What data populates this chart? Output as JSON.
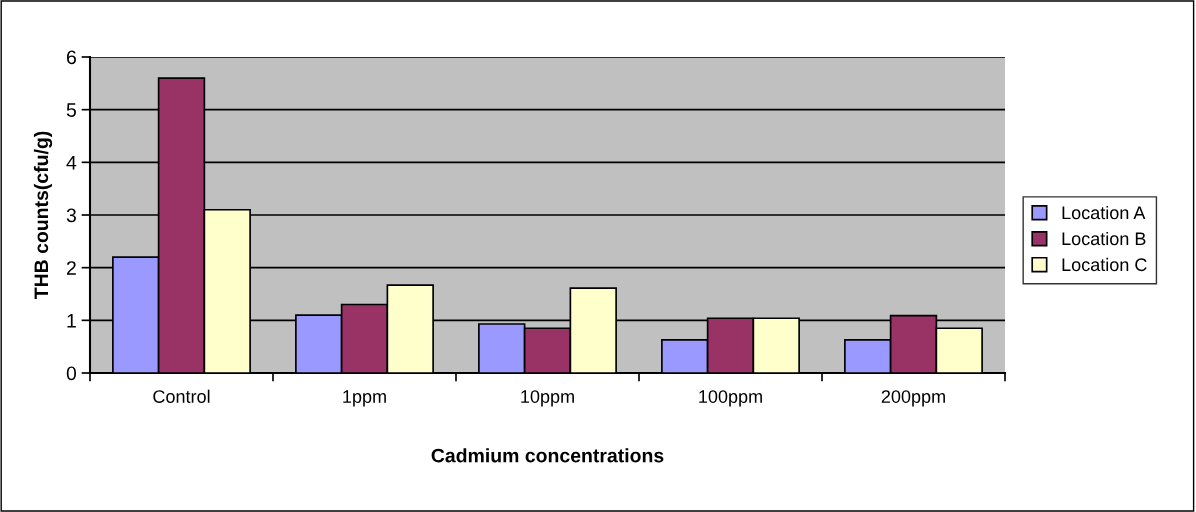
{
  "chart_data": {
    "type": "bar",
    "xlabel": "Cadmium concentrations",
    "ylabel": "THB counts(cfu/g)",
    "categories": [
      "Control",
      "1ppm",
      "10ppm",
      "100ppm",
      "200ppm"
    ],
    "series": [
      {
        "name": "Location A",
        "color": "#9999ff",
        "values": [
          2.2,
          1.1,
          0.93,
          0.63,
          0.63
        ]
      },
      {
        "name": "Location B",
        "color": "#993366",
        "values": [
          5.6,
          1.3,
          0.85,
          1.04,
          1.09
        ]
      },
      {
        "name": "Location C",
        "color": "#ffffcc",
        "values": [
          3.1,
          1.67,
          1.61,
          1.04,
          0.85
        ]
      }
    ],
    "ylim": [
      0,
      6
    ],
    "yticks": [
      0,
      1,
      2,
      3,
      4,
      5,
      6
    ],
    "grid": "y",
    "legend": "right"
  }
}
